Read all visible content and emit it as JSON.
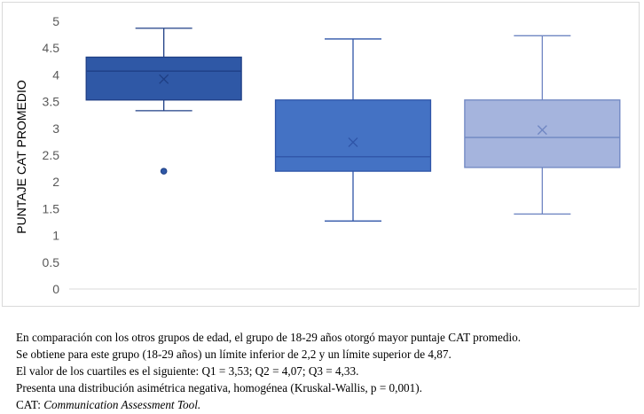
{
  "chart_data": {
    "type": "boxplot",
    "title": "",
    "xlabel": "",
    "ylabel": "PUNTAJE CAT PROMEDIO",
    "ylim": [
      0,
      5
    ],
    "yticks": [
      "0",
      "0.5",
      "1",
      "1.5",
      "2",
      "2.5",
      "3",
      "3.5",
      "4",
      "4.5",
      "5"
    ],
    "grid": false,
    "legend": "none",
    "series": [
      {
        "min": 3.33,
        "q1": 3.53,
        "median": 4.07,
        "q3": 4.33,
        "max": 4.87,
        "mean": 3.92,
        "outliers": [
          2.2
        ],
        "color": "#2f58a6",
        "edge": "#1f3f85"
      },
      {
        "min": 1.27,
        "q1": 2.2,
        "median": 2.47,
        "q3": 3.53,
        "max": 4.67,
        "mean": 2.74,
        "outliers": [],
        "color": "#4472c4",
        "edge": "#2f55a8"
      },
      {
        "min": 1.4,
        "q1": 2.27,
        "median": 2.83,
        "q3": 3.53,
        "max": 4.73,
        "mean": 2.97,
        "outliers": [],
        "color": "#a5b4dd",
        "edge": "#6f86c2"
      }
    ]
  },
  "notes": {
    "line1": "En comparación con los otros grupos de edad, el grupo de 18-29 años otorgó mayor puntaje CAT promedio.",
    "line2": "Se obtiene para este grupo (18-29 años) un límite inferior de 2,2 y un límite superior de 4,87.",
    "line3": "El valor de los cuartiles es el siguiente: Q1 = 3,53; Q2 = 4,07; Q3 = 4,33.",
    "line4": "Presenta una distribución asimétrica negativa, homogénea (Kruskal-Wallis, p = 0,001).",
    "line5_prefix": "CAT: ",
    "line5_italic": "Communication Assessment Tool."
  }
}
